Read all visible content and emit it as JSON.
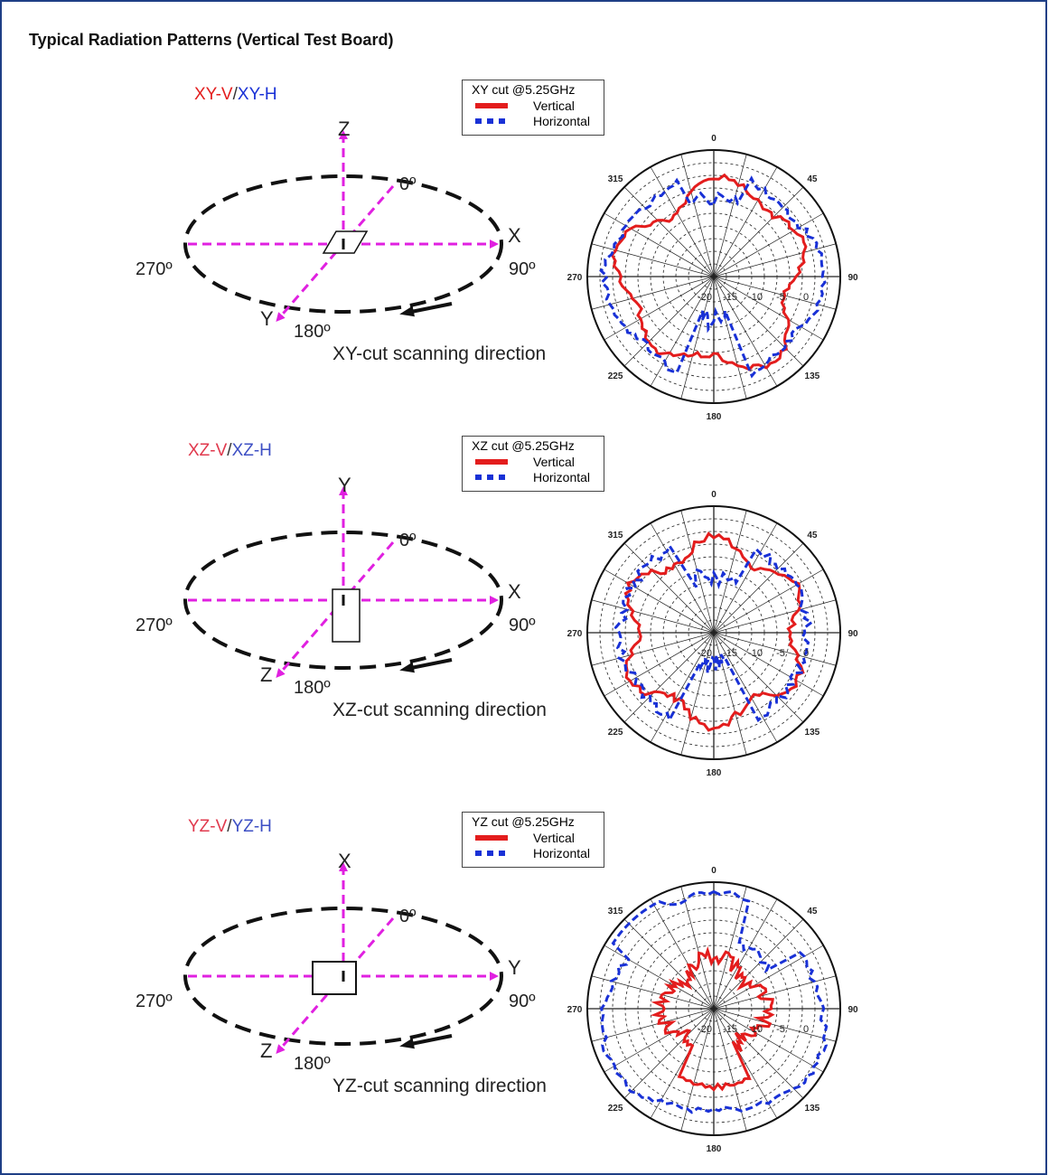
{
  "title": "Typical Radiation Patterns (Vertical Test Board)",
  "panels": [
    {
      "pol_v": "XY-V",
      "sep": "/",
      "pol_h": "XY-H",
      "pol_v_color": "#e31d1d",
      "pol_h_color": "#1931d6",
      "legend_title": "XY cut @5.25GHz",
      "legend_vertical": "Vertical",
      "legend_horizontal": "Horizontal",
      "vert_axis": "Z",
      "right_axis": "X",
      "diag_axis": "Y",
      "label_0": "0º",
      "label_90": "90º",
      "label_180": "180º",
      "label_270": "270º",
      "scan_text": "XY-cut scanning direction",
      "polar_labels": {
        "a0": "0",
        "a45": "45",
        "a90": "90",
        "a135": "135",
        "a180": "180",
        "a225": "225",
        "a270": "270",
        "a315": "315"
      },
      "radial_labels": [
        "-20",
        "-15",
        "-10",
        "-5",
        "0"
      ]
    },
    {
      "pol_v": "XZ-V",
      "sep": "/",
      "pol_h": "XZ-H",
      "pol_v_color": "#e0394d",
      "pol_h_color": "#3d4fc4",
      "legend_title": "XZ cut @5.25GHz",
      "legend_vertical": "Vertical",
      "legend_horizontal": "Horizontal",
      "vert_axis": "Y",
      "right_axis": "X",
      "diag_axis": "Z",
      "label_0": "0º",
      "label_90": "90º",
      "label_180": "180º",
      "label_270": "270º",
      "scan_text": "XZ-cut scanning direction",
      "polar_labels": {
        "a0": "0",
        "a45": "45",
        "a90": "90",
        "a135": "135",
        "a180": "180",
        "a225": "225",
        "a270": "270",
        "a315": "315"
      },
      "radial_labels": [
        "-20",
        "-15",
        "-10",
        "-5",
        "0"
      ]
    },
    {
      "pol_v": "YZ-V",
      "sep": "/",
      "pol_h": "YZ-H",
      "pol_v_color": "#e0394d",
      "pol_h_color": "#3d4fc4",
      "legend_title": "YZ cut @5.25GHz",
      "legend_vertical": "Vertical",
      "legend_horizontal": "Horizontal",
      "vert_axis": "X",
      "right_axis": "Y",
      "diag_axis": "Z",
      "label_0": "0º",
      "label_90": "90º",
      "label_180": "180º",
      "label_270": "270º",
      "scan_text": "YZ-cut scanning direction",
      "polar_labels": {
        "a0": "0",
        "a45": "45",
        "a90": "90",
        "a135": "135",
        "a180": "180",
        "a225": "225",
        "a270": "270",
        "a315": "315"
      },
      "radial_labels": [
        "-20",
        "-15",
        "-10",
        "-5",
        "0"
      ]
    }
  ],
  "colors": {
    "axis_arrow": "#e020e0",
    "ellipse": "#111111",
    "vertical_trace": "#e31d1d",
    "horizontal_trace": "#1931d6",
    "frame": "#1f3f86"
  }
}
